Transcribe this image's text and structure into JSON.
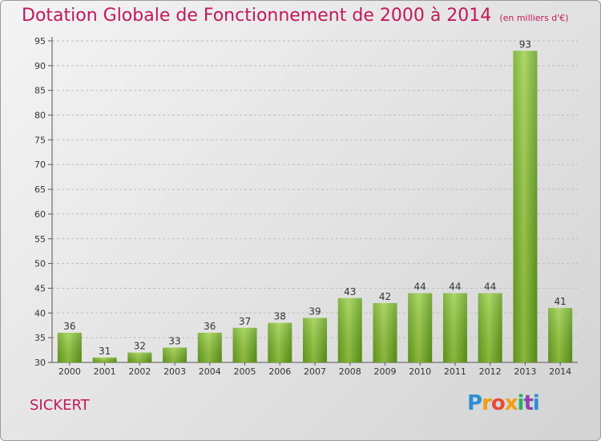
{
  "chart_data": {
    "type": "bar",
    "title": "Dotation Globale de Fonctionnement de 2000 à 2014",
    "unit_note": "(en milliers d'€)",
    "categories": [
      "2000",
      "2001",
      "2002",
      "2003",
      "2004",
      "2005",
      "2006",
      "2007",
      "2008",
      "2009",
      "2010",
      "2011",
      "2012",
      "2013",
      "2014"
    ],
    "values": [
      36,
      31,
      32,
      33,
      36,
      37,
      38,
      39,
      43,
      42,
      44,
      44,
      44,
      93,
      41
    ],
    "ylim": [
      30,
      95
    ],
    "yticks": [
      30,
      35,
      40,
      45,
      50,
      55,
      60,
      65,
      70,
      75,
      80,
      85,
      90,
      95
    ],
    "grid": true,
    "bar_color": "#7dbb2e"
  },
  "commune": "SICKERT",
  "brand": {
    "letters": [
      "P",
      "r",
      "o",
      "x",
      "i",
      "t",
      "i"
    ],
    "colors": [
      "#2b8fd6",
      "#f39c12",
      "#e74c3c",
      "#f39c12",
      "#27ae60",
      "#8e44ad",
      "#2b8fd6"
    ]
  }
}
